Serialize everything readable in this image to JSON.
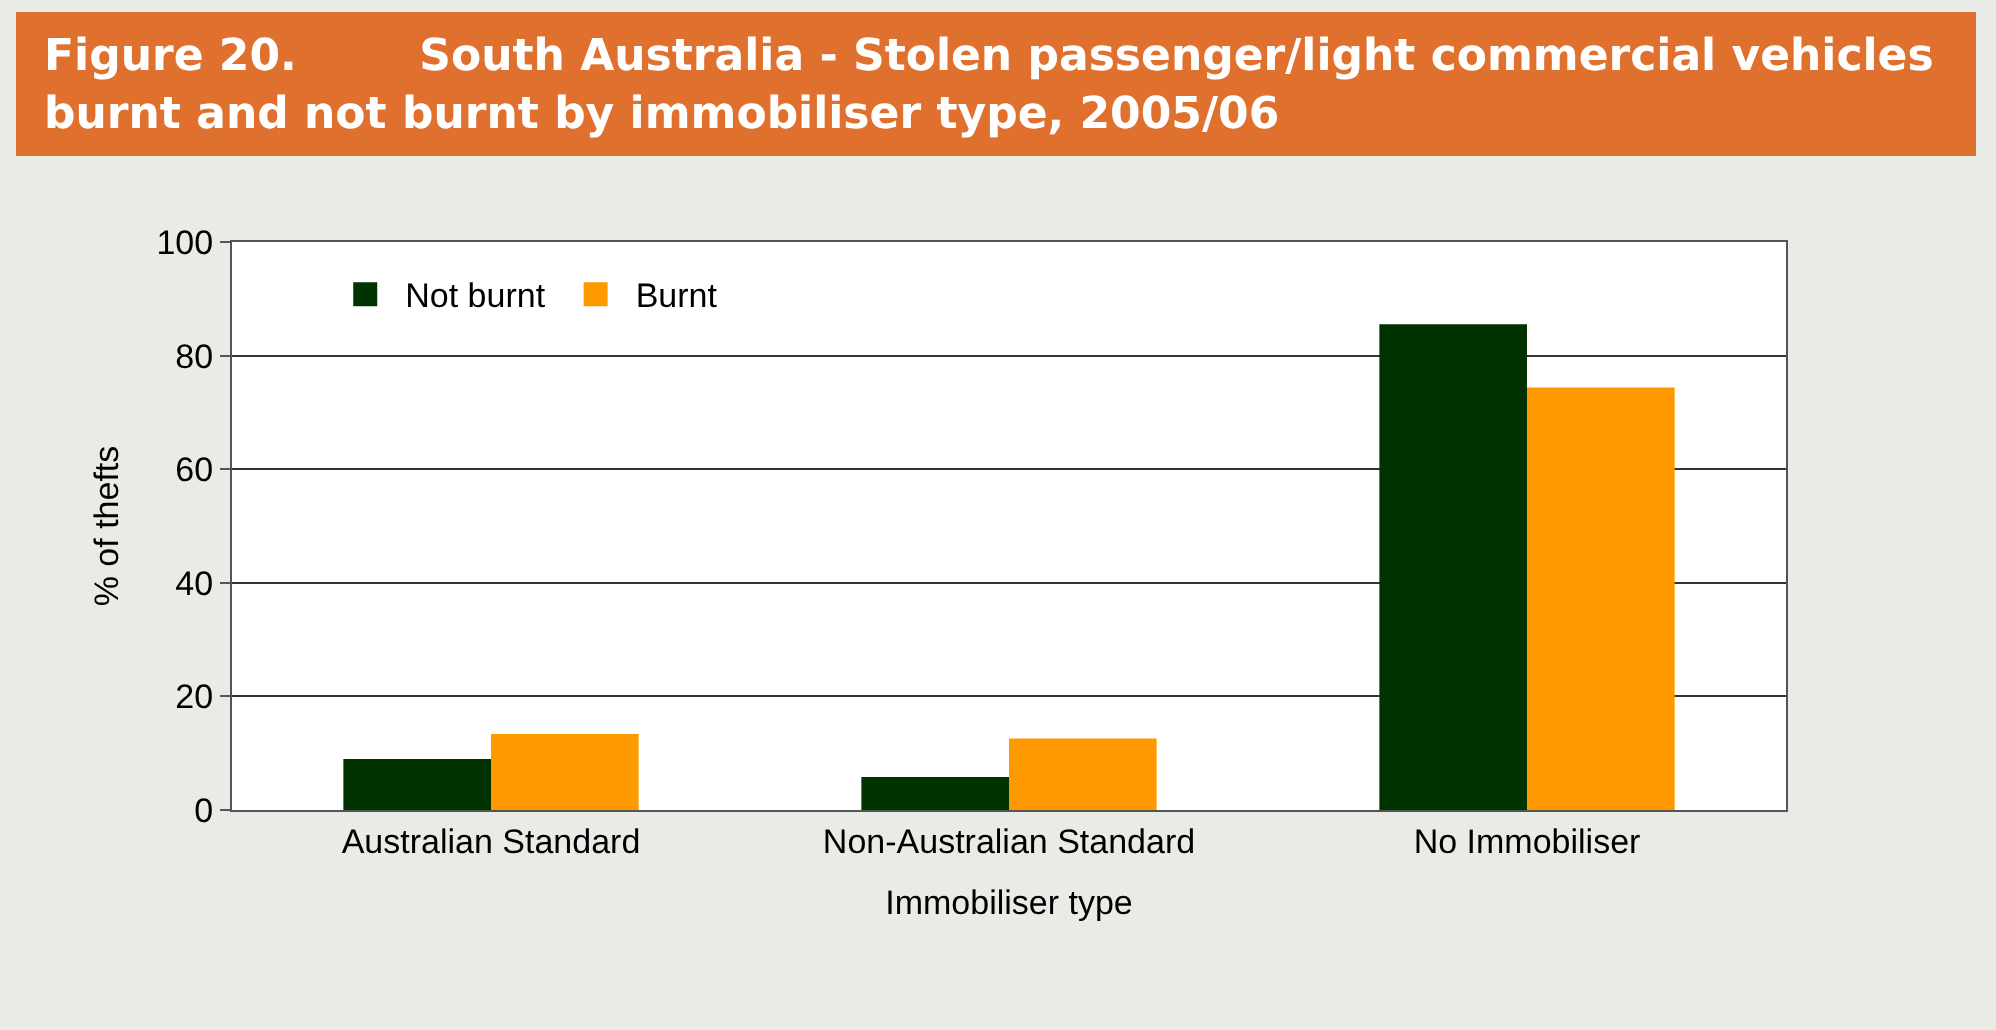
{
  "chart_data": {
    "type": "bar",
    "title": "Figure 20.        South Australia - Stolen passenger/light commercial vehicles burnt and not burnt by immobiliser type, 2005/06",
    "xlabel": "Immobiliser type",
    "ylabel": "% of thefts",
    "categories": [
      "Australian Standard",
      "Non-Australian Standard",
      "No Immobiliser"
    ],
    "series": [
      {
        "name": "Not burnt",
        "color": "#003300",
        "values": [
          9.0,
          5.8,
          85.5
        ]
      },
      {
        "name": "Burnt",
        "color": "#ff9900",
        "values": [
          13.4,
          12.6,
          74.4
        ]
      }
    ],
    "ylim": [
      0,
      100
    ],
    "yticks": [
      0,
      20,
      40,
      60,
      80,
      100
    ],
    "grid": "y",
    "legend": "top left"
  }
}
